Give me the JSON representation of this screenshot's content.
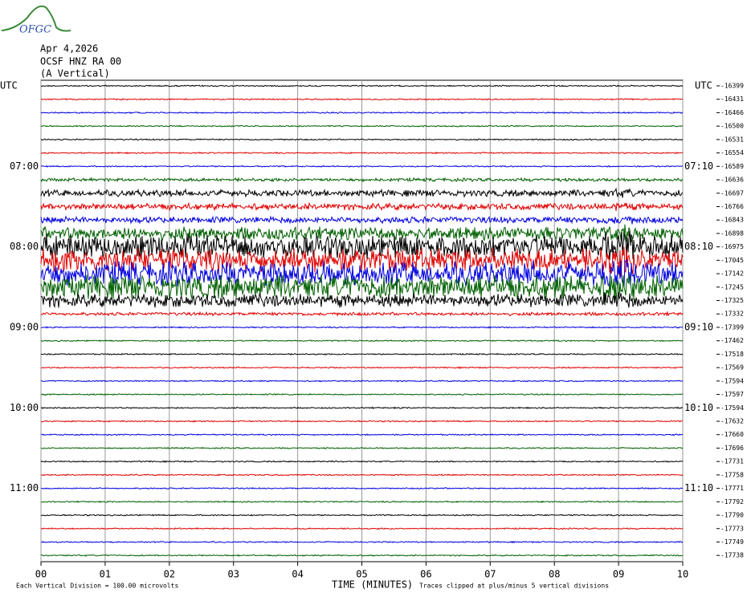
{
  "chart_data": {
    "type": "helicorder",
    "logo": "OFGC",
    "title_lines": [
      "Apr 4,2026",
      "OCSF HNZ RA 00",
      "(A Vertical)"
    ],
    "xlabel": "TIME (MINUTES)",
    "scale_note": "Each Vertical Division =  100.00 microvolts",
    "clip_note": "Traces clipped at plus/minus 5 vertical divisions",
    "xlim": [
      0,
      10
    ],
    "xticks": [
      {
        "value": 0,
        "label": "00"
      },
      {
        "value": 1,
        "label": "01"
      },
      {
        "value": 2,
        "label": "02"
      },
      {
        "value": 3,
        "label": "03"
      },
      {
        "value": 4,
        "label": "04"
      },
      {
        "value": 5,
        "label": "05"
      },
      {
        "value": 6,
        "label": "06"
      },
      {
        "value": 7,
        "label": "07"
      },
      {
        "value": 8,
        "label": "08"
      },
      {
        "value": 9,
        "label": "09"
      },
      {
        "value": 10,
        "label": "10"
      }
    ],
    "grid": true,
    "colors": [
      "#000000",
      "#e00000",
      "#0000e0",
      "#006000"
    ],
    "left_labels": [
      "UTC",
      null,
      null,
      null,
      null,
      null,
      "07:00",
      null,
      null,
      null,
      null,
      null,
      "08:00",
      null,
      null,
      null,
      null,
      null,
      "09:00",
      null,
      null,
      null,
      null,
      null,
      "10:00",
      null,
      null,
      null,
      null,
      null,
      "11:00",
      null,
      null,
      null,
      null,
      null
    ],
    "right_labels": [
      "UTC",
      null,
      null,
      null,
      null,
      null,
      "07:10",
      null,
      null,
      null,
      null,
      null,
      "08:10",
      null,
      null,
      null,
      null,
      null,
      "09:10",
      null,
      null,
      null,
      null,
      null,
      "10:10",
      null,
      null,
      null,
      null,
      null,
      "11:10",
      null,
      null,
      null,
      null,
      null
    ],
    "values": [
      -16399,
      -16431,
      -16466,
      -16500,
      -16531,
      -16554,
      -16589,
      -16636,
      -16697,
      -16766,
      -16843,
      -16898,
      -16975,
      -17045,
      -17142,
      -17245,
      -17325,
      -17332,
      -17399,
      -17462,
      -17518,
      -17569,
      -17594,
      -17597,
      -17594,
      -17632,
      -17660,
      -17696,
      -17731,
      -17758,
      -17771,
      -17792,
      -17790,
      -17773,
      -17749,
      -17738
    ]
  }
}
